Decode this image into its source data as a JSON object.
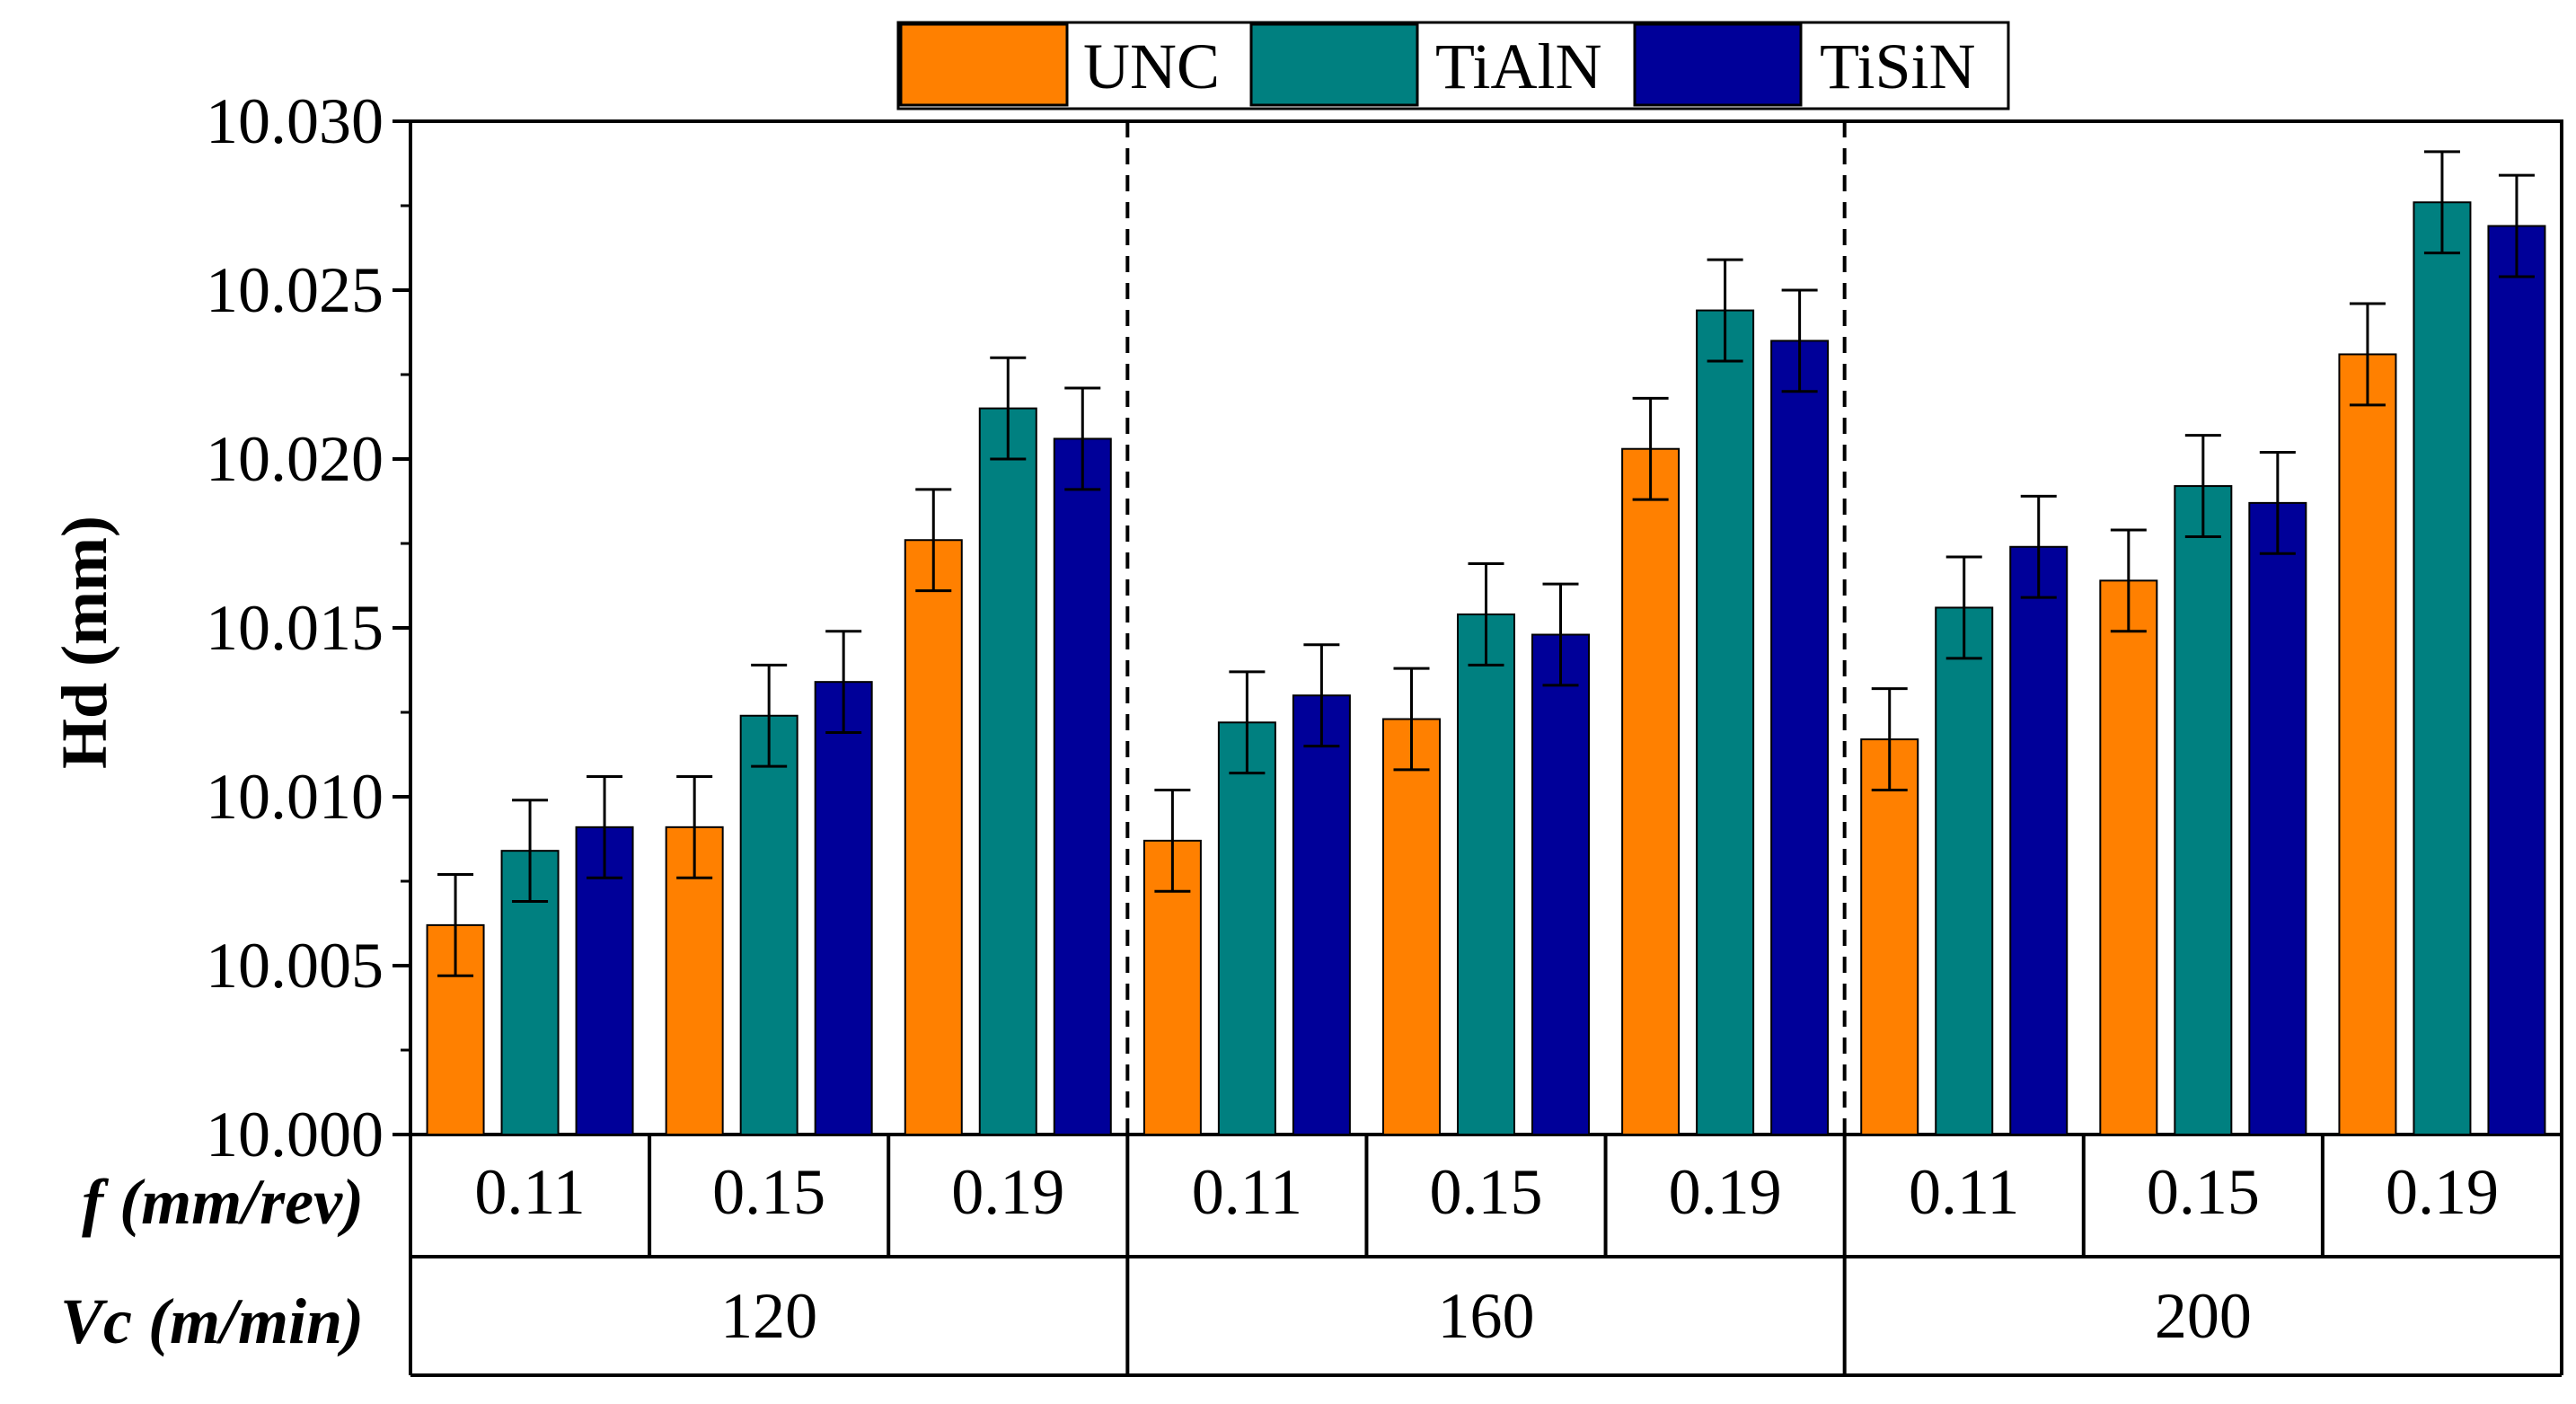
{
  "chart_data": {
    "type": "bar",
    "title": "",
    "ylabel": "Hd (mm)",
    "ylim": [
      10.0,
      10.03
    ],
    "yticks": [
      "10.000",
      "10.005",
      "10.010",
      "10.015",
      "10.020",
      "10.025",
      "10.030"
    ],
    "yminor_step": 0.0025,
    "legend": {
      "position": "top-center",
      "entries": [
        "UNC",
        "TiAlN",
        "TiSiN"
      ]
    },
    "row_labels": {
      "feed": "f (mm/rev)",
      "speed": "Vc (m/min)"
    },
    "feed_values": [
      "0.11",
      "0.15",
      "0.19"
    ],
    "speed_values": [
      "120",
      "160",
      "200"
    ],
    "categories": [
      "120 / 0.11",
      "120 / 0.15",
      "120 / 0.19",
      "160 / 0.11",
      "160 / 0.15",
      "160 / 0.19",
      "200 / 0.11",
      "200 / 0.15",
      "200 / 0.19"
    ],
    "series": [
      {
        "name": "UNC",
        "color": "#FF8000",
        "values": [
          10.0062,
          10.0091,
          10.0176,
          10.0087,
          10.0123,
          10.0203,
          10.0117,
          10.0164,
          10.0231
        ],
        "errors": [
          0.0015,
          0.0015,
          0.0015,
          0.0015,
          0.0015,
          0.0015,
          0.0015,
          0.0015,
          0.0015
        ]
      },
      {
        "name": "TiAlN",
        "color": "#008080",
        "values": [
          10.0084,
          10.0124,
          10.0215,
          10.0122,
          10.0154,
          10.0244,
          10.0156,
          10.0192,
          10.0276
        ],
        "errors": [
          0.0015,
          0.0015,
          0.0015,
          0.0015,
          0.0015,
          0.0015,
          0.0015,
          0.0015,
          0.0015
        ]
      },
      {
        "name": "TiSiN",
        "color": "#000099",
        "values": [
          10.0091,
          10.0134,
          10.0206,
          10.013,
          10.0148,
          10.0235,
          10.0174,
          10.0187,
          10.0269
        ],
        "errors": [
          0.0015,
          0.0015,
          0.0015,
          0.0015,
          0.0015,
          0.0015,
          0.0015,
          0.0015,
          0.0015
        ]
      }
    ]
  }
}
